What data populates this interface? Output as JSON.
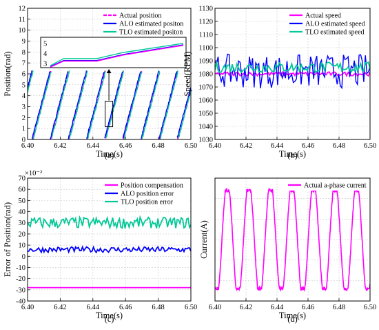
{
  "colors": {
    "actual": "#ff00ff",
    "alo": "#0000ff",
    "tlo": "#00c896",
    "axis": "#000000",
    "grid": "#c8c8c8"
  },
  "chart_data": [
    {
      "id": "a",
      "caption": "(a)",
      "type": "line",
      "xlabel": "Time(s)",
      "ylabel": "Position(rad)",
      "xlim": [
        6.4,
        6.5
      ],
      "ylim": [
        0,
        12
      ],
      "xticks": [
        "6.40",
        "6.42",
        "6.44",
        "6.46",
        "6.48",
        "6.50"
      ],
      "yticks": [
        "0",
        "1",
        "2",
        "3",
        "4",
        "5",
        "6",
        "7",
        "8",
        "9",
        "10",
        "11",
        "12"
      ],
      "grid": true,
      "legend_position": "top-right",
      "wrap_period_s": 0.0111,
      "wrap_max_rad": 6.28,
      "series": [
        {
          "name": "Actual position",
          "color_key": "actual",
          "style": "dashed",
          "phase_offset_s": 0.0
        },
        {
          "name": "ALO estimated positon",
          "color_key": "alo",
          "style": "solid",
          "phase_offset_s": 0.0004
        },
        {
          "name": "TLO estimated positon",
          "color_key": "tlo",
          "style": "solid",
          "phase_offset_s": -0.0003
        }
      ],
      "inset": {
        "yticks": [
          "3",
          "4",
          "5"
        ],
        "ylim": [
          2.6,
          5.6
        ],
        "series": [
          {
            "color_key": "tlo",
            "x": [
              0,
              0.1,
              0.35,
              0.55,
              1
            ],
            "y": [
              2.8,
              3.5,
              3.5,
              4.1,
              5.0
            ]
          },
          {
            "color_key": "alo",
            "x": [
              0,
              0.1,
              0.35,
              0.55,
              1
            ],
            "y": [
              2.7,
              3.3,
              3.3,
              3.9,
              4.85
            ]
          },
          {
            "color_key": "actual",
            "x": [
              0,
              0.1,
              0.35,
              0.55,
              1
            ],
            "y": [
              2.65,
              3.25,
              3.25,
              3.85,
              4.8
            ]
          }
        ]
      }
    },
    {
      "id": "b",
      "caption": "(b)",
      "type": "line",
      "xlabel": "Time(s)",
      "ylabel": "Speed(RPM)",
      "xlim": [
        6.4,
        6.5
      ],
      "ylim": [
        1030,
        1130
      ],
      "xticks": [
        "6.40",
        "6.42",
        "6.44",
        "6.46",
        "6.48",
        "6.50"
      ],
      "yticks": [
        "1030",
        "1040",
        "1050",
        "1060",
        "1070",
        "1080",
        "1090",
        "1100",
        "1110",
        "1120",
        "1130"
      ],
      "grid": true,
      "legend_position": "top-right",
      "series": [
        {
          "name": "Actual speed",
          "color_key": "actual",
          "style": "solid",
          "mean": 1080,
          "amp": 1.5,
          "samples": 100
        },
        {
          "name": "ALO estimated speed",
          "color_key": "alo",
          "style": "solid",
          "mean": 1082,
          "amp": 13,
          "samples": 100
        },
        {
          "name": "TLO estimated speed",
          "color_key": "tlo",
          "style": "solid",
          "mean": 1085,
          "amp": 4,
          "samples": 100
        }
      ]
    },
    {
      "id": "c",
      "caption": "(c)",
      "type": "line",
      "xlabel": "Time(s)",
      "ylabel": "Error of Position(rad)",
      "exponent_label": "×10⁻²",
      "xlim": [
        6.4,
        6.5
      ],
      "ylim": [
        -40,
        70
      ],
      "xticks": [
        "6.40",
        "6.42",
        "6.44",
        "6.46",
        "6.48",
        "6.50"
      ],
      "yticks": [
        "-40",
        "-30",
        "-20",
        "-10",
        "0",
        "10",
        "20",
        "30",
        "40",
        "50",
        "60",
        "70"
      ],
      "grid": true,
      "legend_position": "top-right",
      "series": [
        {
          "name": "Position compensation",
          "color_key": "actual",
          "style": "solid",
          "mean": -28,
          "amp": 0,
          "samples": 2
        },
        {
          "name": "ALO position error",
          "color_key": "alo",
          "style": "solid",
          "mean": 6,
          "amp": 2.5,
          "samples": 120
        },
        {
          "name": "TLO position error",
          "color_key": "tlo",
          "style": "solid",
          "mean": 30,
          "amp": 5,
          "samples": 120
        }
      ]
    },
    {
      "id": "d",
      "caption": "(d)",
      "type": "line",
      "xlabel": "Time(s)",
      "ylabel": "Current(A)",
      "xlim": [
        6.4,
        6.5
      ],
      "ylim": [
        -30,
        30
      ],
      "xticks": [
        "6.40",
        "6.42",
        "6.44",
        "6.46",
        "6.48",
        "6.50"
      ],
      "yticks": [],
      "grid": true,
      "legend_position": "top-right",
      "series": [
        {
          "name": "Actual a-phase current",
          "color_key": "actual",
          "style": "solid",
          "amplitude": 25,
          "period_s": 0.0139,
          "phase_s": 0.0045
        }
      ]
    }
  ]
}
